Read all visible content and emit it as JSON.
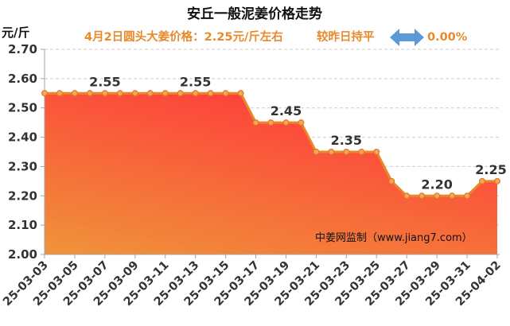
{
  "chart_data": {
    "type": "area",
    "title": "安丘一般泥姜价格走势",
    "xlabel": "",
    "ylabel": "元/斤",
    "ylim": [
      2.0,
      2.7
    ],
    "yticks": [
      "2.70",
      "2.60",
      "2.50",
      "2.40",
      "2.30",
      "2.20",
      "2.10",
      "2.00"
    ],
    "xticks": [
      "25-03-03",
      "25-03-05",
      "25-03-07",
      "25-03-09",
      "25-03-11",
      "25-03-13",
      "25-03-15",
      "25-03-17",
      "25-03-19",
      "25-03-21",
      "25-03-23",
      "25-03-25",
      "25-03-27",
      "25-03-29",
      "25-03-31",
      "25-04-02"
    ],
    "x": [
      "25-03-03",
      "25-03-04",
      "25-03-05",
      "25-03-06",
      "25-03-07",
      "25-03-08",
      "25-03-09",
      "25-03-10",
      "25-03-11",
      "25-03-12",
      "25-03-13",
      "25-03-14",
      "25-03-15",
      "25-03-16",
      "25-03-17",
      "25-03-18",
      "25-03-19",
      "25-03-20",
      "25-03-21",
      "25-03-22",
      "25-03-23",
      "25-03-24",
      "25-03-25",
      "25-03-26",
      "25-03-27",
      "25-03-28",
      "25-03-29",
      "25-03-30",
      "25-03-31",
      "25-04-01",
      "25-04-02"
    ],
    "series": [
      {
        "values": [
          2.55,
          2.55,
          2.55,
          2.55,
          2.55,
          2.55,
          2.55,
          2.55,
          2.55,
          2.55,
          2.55,
          2.55,
          2.55,
          2.55,
          2.45,
          2.45,
          2.45,
          2.45,
          2.35,
          2.35,
          2.35,
          2.35,
          2.35,
          2.25,
          2.2,
          2.2,
          2.2,
          2.2,
          2.2,
          2.25,
          2.25
        ]
      }
    ],
    "data_labels": [
      {
        "x": "25-03-07",
        "text": "2.55"
      },
      {
        "x": "25-03-13",
        "text": "2.55"
      },
      {
        "x": "25-03-19",
        "text": "2.45"
      },
      {
        "x": "25-03-23",
        "text": "2.35"
      },
      {
        "x": "25-03-29",
        "text": "2.20"
      },
      {
        "x": "25-04-02",
        "text": "2.25"
      }
    ],
    "grid": true
  },
  "header": {
    "price_text": "4月2日圆头大姜价格：2.25元/斤左右",
    "change_text": "较昨日持平",
    "change_icon": "double-arrow-icon",
    "change_percent": "0.00%"
  },
  "watermark": "中姜网监制（www.jiang7.com）",
  "colors": {
    "accent": "#e8892b",
    "arrow": "#5b9bd5",
    "line": "#e8892b",
    "area_top": "#ff3b3b",
    "area_bottom": "#f0903a",
    "marker_fill": "#f6a55e",
    "marker_stroke": "#dd7a22",
    "grid": "#cccccc",
    "axis": "#a6a6a6"
  }
}
